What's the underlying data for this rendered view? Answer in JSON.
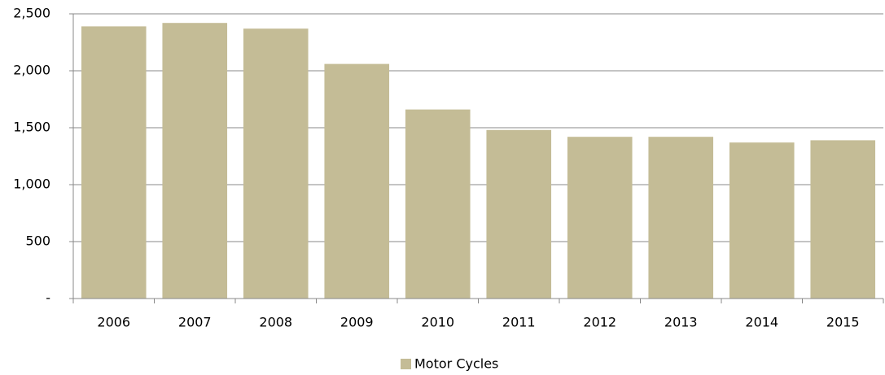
{
  "chart_data": {
    "type": "bar",
    "categories": [
      "2006",
      "2007",
      "2008",
      "2009",
      "2010",
      "2011",
      "2012",
      "2013",
      "2014",
      "2015"
    ],
    "series": [
      {
        "name": "Motor Cycles",
        "color": "#c4bc96",
        "values": [
          2390,
          2420,
          2370,
          2060,
          1660,
          1480,
          1420,
          1420,
          1370,
          1390
        ]
      }
    ],
    "ylim": [
      0,
      2500
    ],
    "yticks": [
      {
        "value": 0,
        "label": "-"
      },
      500,
      {
        "value": 1000,
        "label": "1,000"
      },
      {
        "value": 1500,
        "label": "1,500"
      },
      {
        "value": 2000,
        "label": "2,000"
      },
      {
        "value": 2500,
        "label": "2,500"
      }
    ],
    "grid": true,
    "legend": "bottom"
  }
}
